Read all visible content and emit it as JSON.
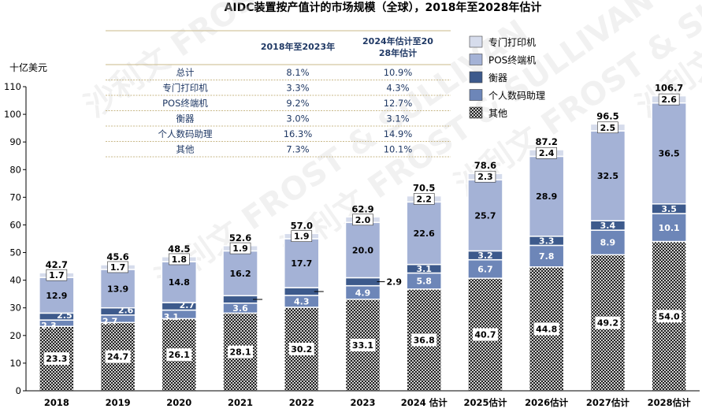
{
  "chart_data": {
    "type": "bar",
    "stacked": true,
    "title": "AIDC装置按产值计的市场规模（全球），2018年至2028年估计",
    "ylabel": "十亿美元",
    "ylim": [
      0,
      110
    ],
    "yticks": [
      0,
      10,
      20,
      30,
      40,
      50,
      60,
      70,
      80,
      90,
      100,
      110
    ],
    "categories": [
      "2018",
      "2019",
      "2020",
      "2021",
      "2022",
      "2023",
      "2024 估计",
      "2025估计",
      "2026估计",
      "2027估计",
      "2028估计"
    ],
    "series": [
      {
        "name": "其他",
        "values": [
          23.3,
          24.7,
          26.1,
          28.1,
          30.2,
          33.1,
          36.8,
          40.7,
          44.8,
          49.2,
          54.0
        ],
        "labels": [
          "23.3",
          "24.7",
          "26.1",
          "28.1",
          "30.2",
          "33.1",
          "36.8",
          "40.7",
          "44.8",
          "49.2",
          "54.0"
        ]
      },
      {
        "name": "个人数码助理",
        "values": [
          2.3,
          2.7,
          3.1,
          3.6,
          4.3,
          4.9,
          5.8,
          6.7,
          7.8,
          8.9,
          10.1
        ],
        "labels": [
          "2.3",
          "2.7",
          "3.1",
          "3.6",
          "4.3",
          "4.9",
          "5.8",
          "6.7",
          "7.8",
          "8.9",
          "10.1"
        ]
      },
      {
        "name": "衡器",
        "values": [
          2.5,
          2.6,
          2.7,
          2.7,
          2.8,
          2.9,
          3.1,
          3.2,
          3.3,
          3.4,
          3.5
        ],
        "labels": [
          "2.5",
          "2.6",
          "2.7",
          "",
          "",
          "2.9",
          "3.1",
          "3.2",
          "3.3",
          "3.4",
          "3.5"
        ]
      },
      {
        "name": "POS终端机",
        "values": [
          12.9,
          13.9,
          14.8,
          16.2,
          17.7,
          20.0,
          22.6,
          25.7,
          28.9,
          32.5,
          36.5
        ],
        "labels": [
          "12.9",
          "13.9",
          "14.8",
          "16.2",
          "17.7",
          "20.0",
          "22.6",
          "25.7",
          "28.9",
          "32.5",
          "36.5"
        ]
      },
      {
        "name": "专门打印机",
        "values": [
          1.7,
          1.7,
          1.8,
          1.9,
          1.9,
          2.0,
          2.2,
          2.3,
          2.4,
          2.5,
          2.6
        ],
        "labels": [
          "1.7",
          "1.7",
          "1.8",
          "1.9",
          "1.9",
          "2.0",
          "2.2",
          "2.3",
          "2.4",
          "2.5",
          "2.6"
        ]
      }
    ],
    "totals": [
      "42.7",
      "45.6",
      "48.5",
      "52.6",
      "57.0",
      "62.9",
      "70.5",
      "78.6",
      "87.2",
      "96.5",
      "106.7"
    ],
    "colors": {
      "其他": "#7f7f7f",
      "个人数码助理": "#6d86b8",
      "衡器": "#3d5a8c",
      "POS终端机": "#a4b2d6",
      "专门打印机": "#d6dcec"
    },
    "legend": {
      "placement": "top-right",
      "order": [
        "专门打印机",
        "POS终端机",
        "衡器",
        "个人数码助理",
        "其他"
      ]
    },
    "cagr_table": {
      "headers": [
        "",
        "2018年至2023年",
        "2024年估计至2028年估计"
      ],
      "rows": [
        [
          "总计",
          "8.1%",
          "10.9%"
        ],
        [
          "专门打印机",
          "3.3%",
          "4.3%"
        ],
        [
          "POS终端机",
          "9.2%",
          "12.7%"
        ],
        [
          "衡器",
          "3.0%",
          "3.1%"
        ],
        [
          "个人数码助理",
          "16.3%",
          "14.9%"
        ],
        [
          "其他",
          "7.3%",
          "10.1%"
        ]
      ]
    },
    "watermark": "沙利文 FROST & SULLIVAN",
    "grid": false
  }
}
